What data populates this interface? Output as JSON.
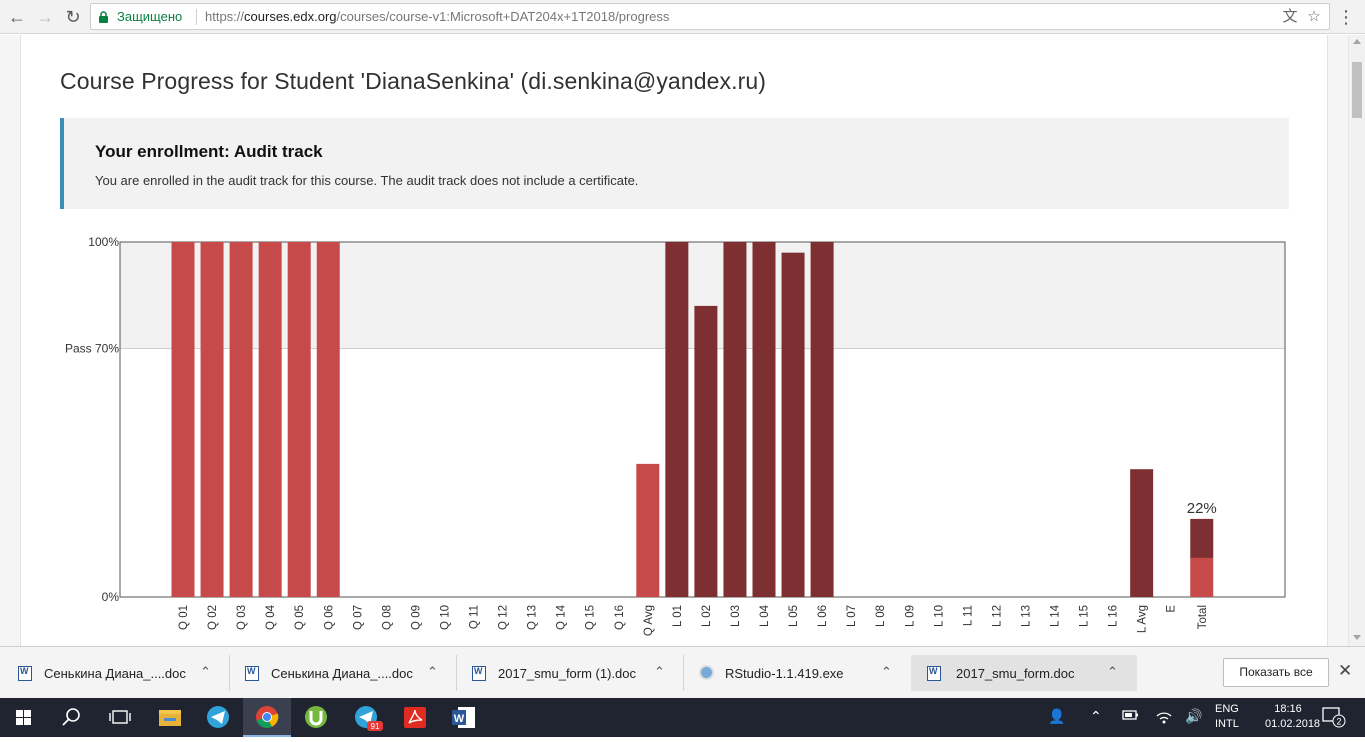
{
  "browser": {
    "security_label": "Защищено",
    "url_scheme": "https://",
    "url_host": "courses.edx.org",
    "url_path": "/courses/course-v1:Microsoft+DAT204x+1T2018/progress"
  },
  "page": {
    "title": "Course Progress for Student 'DianaSenkina' (di.senkina@yandex.ru)",
    "enrollment_heading": "Your enrollment: Audit track",
    "enrollment_text": "You are enrolled in the audit track for this course. The audit track does not include a certificate."
  },
  "chart_data": {
    "type": "bar",
    "ytick_labels": [
      "100%",
      "Pass 70%",
      "0%"
    ],
    "ylim": [
      0,
      100
    ],
    "pass_threshold": 70,
    "total_label": "22%",
    "colors": {
      "quiz": "#c74a4b",
      "lab": "#7e2f32",
      "pass_band": "#f2f2f2",
      "grid": "#cfcfcf"
    },
    "categories": [
      "Q 01",
      "Q 02",
      "Q 03",
      "Q 04",
      "Q 05",
      "Q 06",
      "Q 07",
      "Q 08",
      "Q 09",
      "Q 10",
      "Q 11",
      "Q 12",
      "Q 13",
      "Q 14",
      "Q 15",
      "Q 16",
      "Q Avg",
      "L 01",
      "L 02",
      "L 03",
      "L 04",
      "L 05",
      "L 06",
      "L 07",
      "L 08",
      "L 09",
      "L 10",
      "L 11",
      "L 12",
      "L 13",
      "L 14",
      "L 15",
      "L 16",
      "L Avg",
      "E",
      "Total"
    ],
    "series": [
      {
        "values": [
          100,
          100,
          100,
          100,
          100,
          100,
          0,
          0,
          0,
          0,
          0,
          0,
          0,
          0,
          0,
          0,
          37.5,
          0,
          0,
          0,
          0,
          0,
          0,
          0,
          0,
          0,
          0,
          0,
          0,
          0,
          0,
          0,
          0,
          0,
          0,
          11
        ]
      },
      {
        "values": [
          0,
          0,
          0,
          0,
          0,
          0,
          0,
          0,
          0,
          0,
          0,
          0,
          0,
          0,
          0,
          0,
          0,
          100,
          82,
          100,
          100,
          97,
          100,
          0,
          0,
          0,
          0,
          0,
          0,
          0,
          0,
          0,
          0,
          36,
          0,
          11
        ]
      }
    ]
  },
  "downloads": {
    "items": [
      {
        "name": "Сенькина Диана_....doc",
        "icon": "word-doc-icon"
      },
      {
        "name": "Сенькина Диана_....doc",
        "icon": "word-doc-icon"
      },
      {
        "name": "2017_smu_form (1).doc",
        "icon": "word-doc-icon"
      },
      {
        "name": "RStudio-1.1.419.exe",
        "icon": "installer-icon"
      },
      {
        "name": "2017_smu_form.doc",
        "icon": "word-doc-icon"
      }
    ],
    "show_all_label": "Показать все"
  },
  "taskbar": {
    "lang_line1": "ENG",
    "lang_line2": "INTL",
    "time": "18:16",
    "date": "01.02.2018",
    "telegram_badge": "91",
    "notification_count": "2"
  }
}
